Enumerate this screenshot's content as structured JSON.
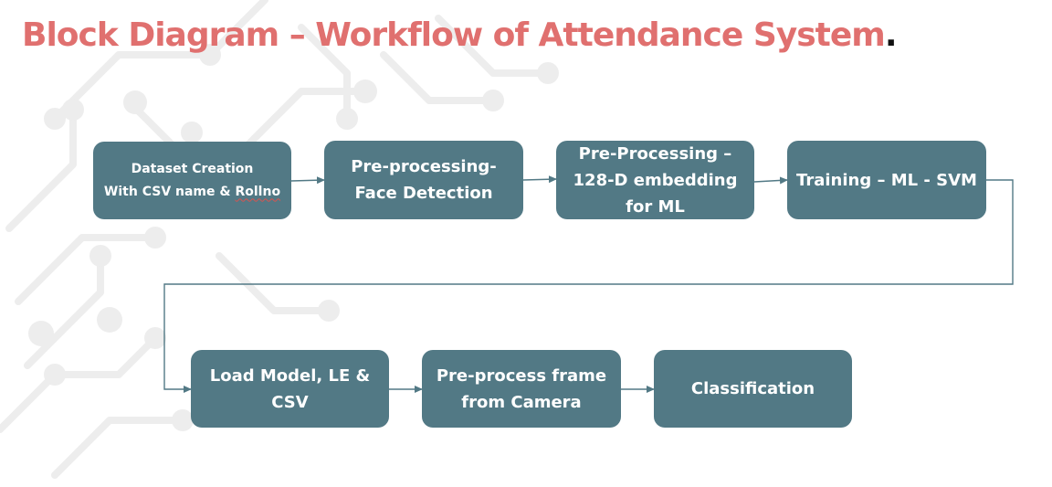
{
  "title": {
    "text": "Block Diagram – Workflow of Attendance System",
    "period": "."
  },
  "colors": {
    "title": "#e0706f",
    "box_fill": "#527985",
    "box_text": "#ffffff",
    "connector": "#527985",
    "background_pattern": "#ebebeb"
  },
  "nodes": {
    "dataset_creation": {
      "line1": "Dataset Creation",
      "line2_prefix": "With CSV name & ",
      "line2_flagged": "Rollno"
    },
    "face_detection": {
      "line1": "Pre-processing-",
      "line2": "Face Detection"
    },
    "embedding": {
      "line1": "Pre-Processing –",
      "line2": "128-D embedding",
      "line3": "for ML"
    },
    "training": {
      "line1": "Training – ML - SVM"
    },
    "load_model": {
      "line1": "Load Model, LE & CSV"
    },
    "preprocess_frame": {
      "line1": "Pre-process frame",
      "line2": "from Camera"
    },
    "classification": {
      "line1": "Classification"
    }
  },
  "flow": [
    "dataset_creation",
    "face_detection",
    "embedding",
    "training",
    "load_model",
    "preprocess_frame",
    "classification"
  ]
}
